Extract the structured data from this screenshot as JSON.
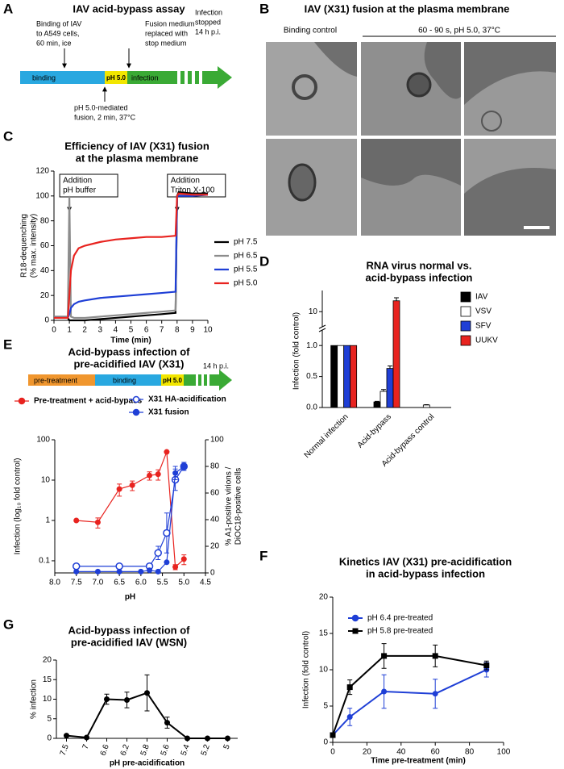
{
  "panels": {
    "A": {
      "label": "A",
      "title": "IAV acid-bypass assay",
      "binding_note": [
        "Binding of IAV",
        "to A549 cells,",
        "60 min, ice"
      ],
      "medium_note": [
        "Fusion medium",
        "replaced with",
        "stop medium"
      ],
      "stop_note": [
        "Infection",
        "stopped",
        "14 h p.i."
      ],
      "segments": [
        "binding",
        "pH 5.0",
        "infection"
      ],
      "fusion_note": [
        "pH 5.0-mediated",
        "fusion, 2 min, 37°C"
      ]
    },
    "B": {
      "label": "B",
      "title": "IAV (X31) fusion at the plasma membrane",
      "control": "Binding control",
      "condition": "60 - 90 s, pH 5.0, 37°C"
    },
    "E_scheme": {
      "segments": [
        "pre-treatment",
        "binding",
        "pH 5.0"
      ],
      "end": "14 h p.i."
    }
  },
  "chart_data": [
    {
      "type": "line",
      "label": "C",
      "title": [
        "Efficiency of IAV (X31) fusion",
        "at the plasma membrane"
      ],
      "xlabel": "Time (min)",
      "ylabel": [
        "R18-dequenching",
        "(% max. intensity)"
      ],
      "xlim": [
        0,
        10
      ],
      "xticks": [
        0,
        1,
        2,
        3,
        4,
        5,
        6,
        7,
        8,
        9,
        10
      ],
      "ylim": [
        0,
        120
      ],
      "yticks": [
        0,
        20,
        40,
        60,
        80,
        100,
        120
      ],
      "x": [
        0,
        0.5,
        0.9,
        1,
        1.1,
        1.3,
        1.6,
        2,
        3,
        4,
        5,
        6,
        7,
        7.9,
        8,
        8.1,
        9,
        10
      ],
      "series": [
        {
          "name": "pH 7.5",
          "color": "#000000",
          "values": [
            3,
            2,
            2,
            0,
            0,
            0,
            0,
            0,
            1,
            2,
            3,
            4,
            5,
            6,
            100,
            103,
            102,
            102
          ]
        },
        {
          "name": "pH 6.5",
          "color": "#8c8c8c",
          "values": [
            3,
            3,
            3,
            100,
            3,
            2,
            2,
            2,
            3,
            4,
            5,
            6,
            7,
            8,
            100,
            101,
            101,
            101
          ]
        },
        {
          "name": "pH 5.5",
          "color": "#1f3fd6",
          "values": [
            2,
            2,
            2,
            5,
            10,
            13,
            15,
            16,
            18,
            19,
            20,
            21,
            22,
            23,
            100,
            100,
            100,
            101
          ]
        },
        {
          "name": "pH 5.0",
          "color": "#e8231f",
          "values": [
            2,
            2,
            2,
            20,
            40,
            52,
            58,
            60,
            63,
            65,
            66,
            67,
            67,
            68,
            100,
            102,
            101,
            101
          ]
        }
      ],
      "annotations": [
        {
          "text": [
            "Addition",
            "pH buffer"
          ],
          "x": 1
        },
        {
          "text": [
            "Addition",
            "Triton X-100"
          ],
          "x": 8
        }
      ]
    },
    {
      "type": "bar",
      "label": "D",
      "title": [
        "RNA virus normal vs.",
        "acid-bypass infection"
      ],
      "ylabel": "Infection (fold control)",
      "categories": [
        "Normal infection",
        "Acid-bypass",
        "Acid-bypass control"
      ],
      "ylim": [
        0,
        13.5
      ],
      "ybreak": [
        1.25,
        7.5
      ],
      "yticks": [
        {
          "value": 0,
          "label": "0.0"
        },
        {
          "value": 0.5,
          "label": "0.5"
        },
        {
          "value": 1,
          "label": "1.0"
        },
        10
      ],
      "series": [
        {
          "name": "IAV",
          "color": "#000000",
          "values": [
            1,
            0.09,
            null
          ],
          "errors": [
            0,
            0.01,
            null
          ]
        },
        {
          "name": "VSV",
          "color": "#ffffff",
          "values": [
            1,
            0.26,
            0.04
          ],
          "errors": [
            0,
            0.03,
            0.005
          ]
        },
        {
          "name": "SFV",
          "color": "#1f3fd6",
          "values": [
            1,
            0.63,
            null
          ],
          "errors": [
            0,
            0.04,
            null
          ]
        },
        {
          "name": "UUKV",
          "color": "#e8231f",
          "values": [
            1,
            11.8,
            null
          ],
          "errors": [
            0,
            0.5,
            null
          ]
        }
      ]
    },
    {
      "type": "line",
      "label": "E",
      "title": [
        "Acid-bypass infection of",
        "pre-acidified IAV (X31)"
      ],
      "xlabel": "pH",
      "ylabel": "Infection (log₁₀ fold control)",
      "y2label": [
        "% A1-positive virions /",
        "DiOC18-positive cells"
      ],
      "xlim": [
        8,
        4.5
      ],
      "xticks": [
        {
          "value": 8,
          "label": "8.0"
        },
        7.5,
        {
          "value": 7,
          "label": "7.0"
        },
        6.5,
        {
          "value": 6,
          "label": "6.0"
        },
        5.5,
        {
          "value": 5,
          "label": "5.0"
        },
        4.5
      ],
      "ylim": [
        0.05,
        100
      ],
      "ylog": true,
      "yticks": [
        0.1,
        1,
        10,
        100
      ],
      "y2lim": [
        0,
        100
      ],
      "y2ticks": [
        0,
        20,
        40,
        60,
        80,
        100
      ],
      "series": [
        {
          "name": "Pre-treatment + acid-bypass",
          "color": "#e8231f",
          "marker": "circle",
          "x": [
            7.5,
            7.0,
            6.5,
            6.2,
            5.8,
            5.6,
            5.4,
            5.2,
            5.0
          ],
          "values": [
            1,
            0.9,
            6,
            7.5,
            13,
            14,
            50,
            0.07,
            0.11
          ],
          "errors": [
            0,
            0.25,
            2,
            2,
            3,
            4,
            0,
            0.01,
            0.03
          ]
        },
        {
          "name": "X31 HA-acidification",
          "color": "#1f3fd6",
          "marker": "open-circle",
          "axis": "y2",
          "x": [
            7.5,
            6.5,
            5.8,
            5.6,
            5.4,
            5.2,
            5.0
          ],
          "values": [
            5,
            5,
            5,
            15,
            30,
            70,
            80
          ],
          "errors": [
            0,
            0,
            0,
            5,
            15,
            8,
            3
          ]
        },
        {
          "name": "X31 fusion",
          "color": "#1f3fd6",
          "marker": "circle",
          "axis": "y2",
          "x": [
            7.5,
            7.0,
            6.5,
            6.0,
            5.8,
            5.6,
            5.4,
            5.2,
            5.0
          ],
          "values": [
            1,
            1,
            1,
            1,
            2,
            1,
            8,
            75,
            80
          ],
          "errors": [
            0,
            0,
            0,
            0,
            0,
            0,
            0,
            5,
            3
          ]
        }
      ]
    },
    {
      "type": "line",
      "label": "F",
      "title": [
        "Kinetics IAV (X31) pre-acidification",
        "in acid-bypass infection"
      ],
      "xlabel": "Time pre-treatment (min)",
      "ylabel": "Infection (fold control)",
      "xlim": [
        0,
        100
      ],
      "xticks": [
        0,
        20,
        40,
        60,
        80,
        100
      ],
      "ylim": [
        0,
        20
      ],
      "yticks": [
        0,
        5,
        10,
        15,
        20
      ],
      "x": [
        0,
        10,
        30,
        60,
        90
      ],
      "series": [
        {
          "name": "pH 6.4 pre-treated",
          "color": "#1f3fd6",
          "marker": "circle",
          "values": [
            1,
            3.5,
            7,
            6.7,
            10
          ],
          "errors": [
            0.2,
            1.2,
            2.3,
            2,
            1
          ]
        },
        {
          "name": "pH 5.8 pre-treated",
          "color": "#000000",
          "marker": "square",
          "values": [
            1,
            7.6,
            11.9,
            11.9,
            10.6
          ],
          "errors": [
            0.2,
            1,
            1.7,
            1.5,
            0.6
          ]
        }
      ]
    },
    {
      "type": "line",
      "label": "G",
      "title": [
        "Acid-bypass infection of",
        "pre-acidified IAV (WSN)"
      ],
      "xlabel": "pH pre-acidification",
      "ylabel": "% infection",
      "categories": [
        "7.5",
        "7",
        "6.6",
        "6.2",
        "5.8",
        "5.6",
        "5.4",
        "5.2",
        "5"
      ],
      "ylim": [
        0,
        20
      ],
      "yticks": [
        0,
        5,
        10,
        15,
        20
      ],
      "series": [
        {
          "color": "#000000",
          "marker": "circle",
          "values": [
            0.7,
            0.2,
            10,
            9.8,
            11.6,
            4,
            0,
            0,
            0
          ],
          "errors": [
            0,
            0,
            1.3,
            2,
            4.6,
            1.4,
            0,
            0,
            0
          ]
        }
      ]
    }
  ]
}
